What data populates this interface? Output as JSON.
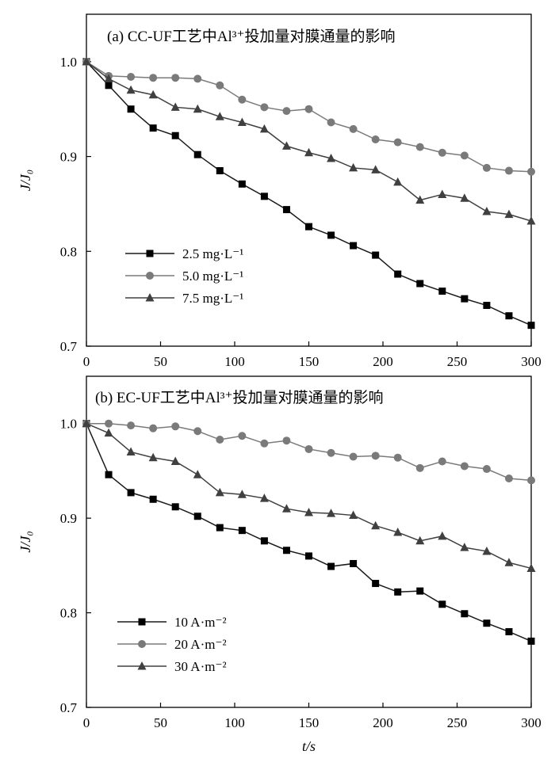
{
  "chart_data": [
    {
      "type": "line",
      "title": "(a) CC-UF工艺中Al³⁺投加量对膜通量的影响",
      "ylabel": "J/J₀",
      "xlabel": "",
      "x": [
        0,
        15,
        30,
        45,
        60,
        75,
        90,
        105,
        120,
        135,
        150,
        165,
        180,
        195,
        210,
        225,
        240,
        255,
        270,
        285,
        300
      ],
      "xlim": [
        0,
        300
      ],
      "ylim": [
        0.7,
        1.05
      ],
      "xticks": [
        "0",
        "50",
        "100",
        "150",
        "200",
        "250",
        "300"
      ],
      "yticks": [
        "0.7",
        "0.8",
        "0.9",
        "1.0"
      ],
      "grid": false,
      "legend_position": "bottom-left",
      "series": [
        {
          "name": "2.5 mg·L⁻¹",
          "marker": "square",
          "color": "#000000",
          "line_color": "#1a1a1a",
          "values": [
            1.0,
            0.975,
            0.95,
            0.93,
            0.922,
            0.902,
            0.885,
            0.871,
            0.858,
            0.844,
            0.826,
            0.817,
            0.806,
            0.796,
            0.776,
            0.766,
            0.758,
            0.75,
            0.743,
            0.732,
            0.722
          ]
        },
        {
          "name": "5.0 mg·L⁻¹",
          "marker": "circle",
          "color": "#7a7a7a",
          "line_color": "#7a7a7a",
          "values": [
            1.0,
            0.985,
            0.984,
            0.983,
            0.983,
            0.982,
            0.975,
            0.96,
            0.952,
            0.948,
            0.95,
            0.936,
            0.929,
            0.918,
            0.915,
            0.91,
            0.904,
            0.901,
            0.888,
            0.885,
            0.884
          ]
        },
        {
          "name": "7.5 mg·L⁻¹",
          "marker": "triangle",
          "color": "#404040",
          "line_color": "#404040",
          "values": [
            1.0,
            0.982,
            0.97,
            0.965,
            0.952,
            0.95,
            0.942,
            0.936,
            0.929,
            0.911,
            0.904,
            0.898,
            0.888,
            0.886,
            0.873,
            0.854,
            0.86,
            0.856,
            0.842,
            0.839,
            0.832
          ]
        }
      ]
    },
    {
      "type": "line",
      "title": "(b) EC-UF工艺中Al³⁺投加量对膜通量的影响",
      "ylabel": "J/J₀",
      "xlabel": "t/s",
      "x": [
        0,
        15,
        30,
        45,
        60,
        75,
        90,
        105,
        120,
        135,
        150,
        165,
        180,
        195,
        210,
        225,
        240,
        255,
        270,
        285,
        300
      ],
      "xlim": [
        0,
        300
      ],
      "ylim": [
        0.7,
        1.05
      ],
      "xticks": [
        "0",
        "50",
        "100",
        "150",
        "200",
        "250",
        "300"
      ],
      "yticks": [
        "0.7",
        "0.8",
        "0.9",
        "1.0"
      ],
      "grid": false,
      "legend_position": "bottom-left",
      "series": [
        {
          "name": "10 A·m⁻²",
          "marker": "square",
          "color": "#000000",
          "line_color": "#1a1a1a",
          "values": [
            1.0,
            0.946,
            0.927,
            0.92,
            0.912,
            0.902,
            0.89,
            0.887,
            0.876,
            0.866,
            0.86,
            0.849,
            0.852,
            0.831,
            0.822,
            0.823,
            0.809,
            0.799,
            0.789,
            0.78,
            0.77
          ]
        },
        {
          "name": "20 A·m⁻²",
          "marker": "circle",
          "color": "#7a7a7a",
          "line_color": "#7a7a7a",
          "values": [
            1.0,
            1.0,
            0.998,
            0.995,
            0.997,
            0.992,
            0.983,
            0.987,
            0.979,
            0.982,
            0.973,
            0.969,
            0.965,
            0.966,
            0.964,
            0.953,
            0.96,
            0.955,
            0.952,
            0.942,
            0.94
          ]
        },
        {
          "name": "30 A·m⁻²",
          "marker": "triangle",
          "color": "#404040",
          "line_color": "#404040",
          "values": [
            1.0,
            0.99,
            0.97,
            0.964,
            0.96,
            0.946,
            0.927,
            0.925,
            0.921,
            0.91,
            0.906,
            0.905,
            0.903,
            0.892,
            0.885,
            0.876,
            0.881,
            0.869,
            0.865,
            0.853,
            0.847
          ]
        }
      ]
    }
  ]
}
